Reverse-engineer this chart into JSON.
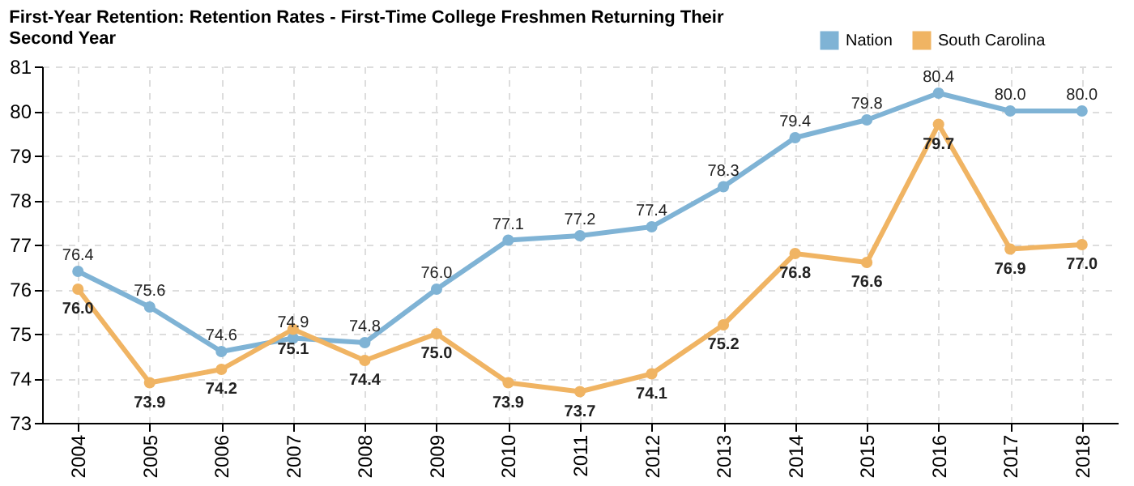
{
  "chart_data": {
    "type": "line",
    "title": "First-Year Retention: Retention Rates - First-Time College Freshmen Returning Their Second Year",
    "categories": [
      "2004",
      "2005",
      "2006",
      "2007",
      "2008",
      "2009",
      "2010",
      "2011",
      "2012",
      "2013",
      "2014",
      "2015",
      "2016",
      "2017",
      "2018"
    ],
    "series": [
      {
        "name": "Nation",
        "color": "#7fb3d5",
        "values": [
          76.4,
          75.6,
          74.6,
          74.9,
          74.8,
          76.0,
          77.1,
          77.2,
          77.4,
          78.3,
          79.4,
          79.8,
          80.4,
          80.0,
          80.0
        ],
        "value_labels": [
          "76.4",
          "75.6",
          "74.6",
          "74.9",
          "74.8",
          "76.0",
          "77.1",
          "77.2",
          "77.4",
          "78.3",
          "79.4",
          "79.8",
          "80.4",
          "80.0",
          "80.0"
        ]
      },
      {
        "name": "South Carolina",
        "color": "#f0b463",
        "values": [
          76.0,
          73.9,
          74.2,
          75.1,
          74.4,
          75.0,
          73.9,
          73.7,
          74.1,
          75.2,
          76.8,
          76.6,
          79.7,
          76.9,
          77.0
        ],
        "value_labels": [
          "76.0",
          "73.9",
          "74.2",
          "75.1",
          "74.4",
          "75.0",
          "73.9",
          "73.7",
          "74.1",
          "75.2",
          "76.8",
          "76.6",
          "79.7",
          "76.9",
          "77.0"
        ]
      }
    ],
    "ylim": [
      73,
      81
    ],
    "yticks": [
      73,
      74,
      75,
      76,
      77,
      78,
      79,
      80,
      81
    ],
    "grid": true,
    "legend": "top right",
    "marker": "circle",
    "line_style": "solid"
  }
}
